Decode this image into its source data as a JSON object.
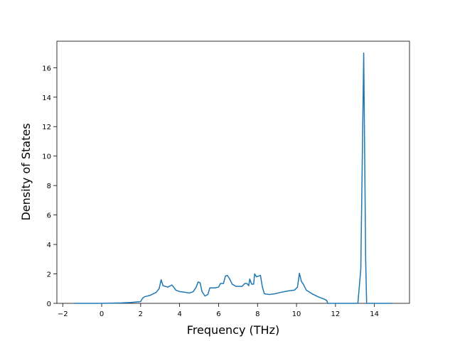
{
  "chart_data": {
    "type": "line",
    "xlabel": "Frequency (THz)",
    "ylabel": "Density of States",
    "color": "#1f77b4",
    "x": [
      -1.4,
      0,
      1,
      1.5,
      2.0,
      2.1,
      2.2,
      2.5,
      2.8,
      2.95,
      3.05,
      3.15,
      3.4,
      3.6,
      3.7,
      3.8,
      4.0,
      4.3,
      4.5,
      4.7,
      4.85,
      4.95,
      5.05,
      5.15,
      5.3,
      5.45,
      5.55,
      5.8,
      6.0,
      6.1,
      6.25,
      6.35,
      6.45,
      6.55,
      6.7,
      6.9,
      7.2,
      7.35,
      7.45,
      7.55,
      7.6,
      7.7,
      7.8,
      7.85,
      7.95,
      8.05,
      8.15,
      8.25,
      8.35,
      8.6,
      8.9,
      9.2,
      9.6,
      9.9,
      10.05,
      10.15,
      10.25,
      10.35,
      10.5,
      10.8,
      11.1,
      11.4,
      11.55,
      11.6,
      13.15,
      13.3,
      13.45,
      13.55,
      13.6,
      14.9
    ],
    "values": [
      0,
      0,
      0.03,
      0.06,
      0.12,
      0.35,
      0.45,
      0.55,
      0.75,
      1.0,
      1.6,
      1.2,
      1.1,
      1.25,
      1.1,
      0.9,
      0.8,
      0.75,
      0.7,
      0.8,
      1.1,
      1.45,
      1.4,
      0.8,
      0.5,
      0.6,
      1.05,
      1.05,
      1.1,
      1.35,
      1.35,
      1.85,
      1.9,
      1.7,
      1.3,
      1.15,
      1.15,
      1.35,
      1.35,
      1.2,
      1.65,
      1.3,
      1.3,
      2.0,
      1.8,
      1.85,
      1.9,
      1.1,
      0.65,
      0.6,
      0.65,
      0.75,
      0.85,
      0.9,
      1.1,
      2.05,
      1.5,
      1.3,
      0.9,
      0.65,
      0.45,
      0.3,
      0.2,
      0,
      0,
      2.3,
      17.0,
      3.0,
      0,
      0
    ],
    "xlim": [
      -2.3,
      15.8
    ],
    "xticks": [
      {
        "value": -2,
        "label": "−2"
      },
      0,
      2,
      4,
      6,
      8,
      10,
      12,
      14
    ],
    "ylim": [
      0,
      17.8
    ],
    "yticks": [
      0,
      2,
      4,
      6,
      8,
      10,
      12,
      14,
      16
    ]
  }
}
